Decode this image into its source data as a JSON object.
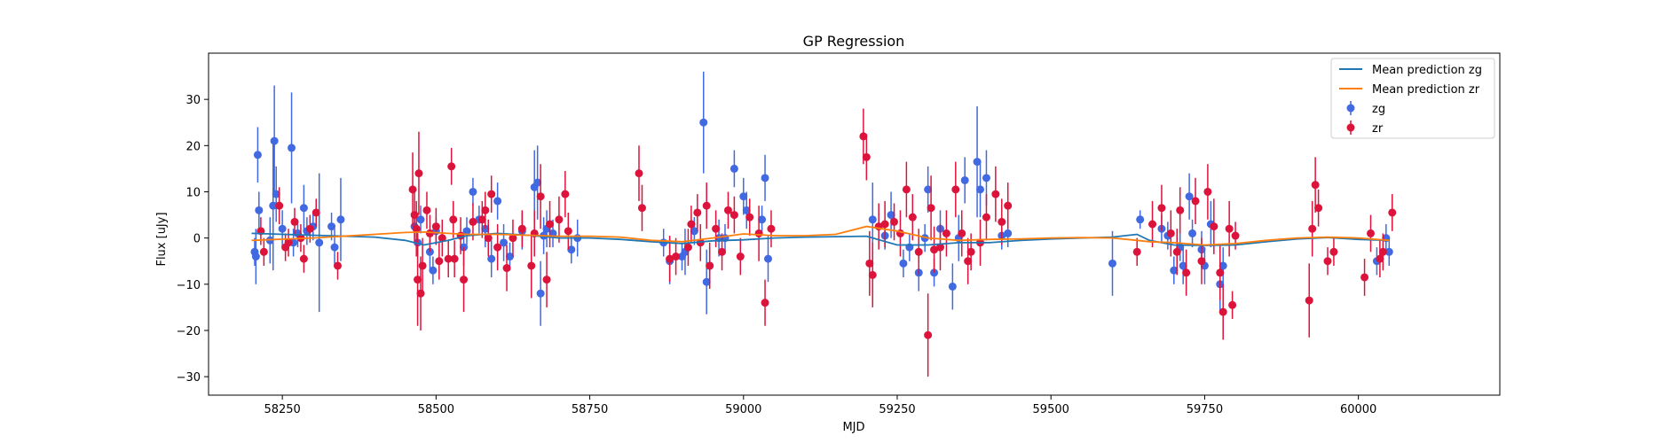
{
  "chart_data": {
    "type": "scatter",
    "title": "GP Regression",
    "xlabel": "MJD",
    "ylabel": "Flux [uJy]",
    "xlim": [
      58130,
      60230
    ],
    "ylim": [
      -34,
      40
    ],
    "xticks": [
      58250,
      58500,
      58750,
      59000,
      59250,
      59500,
      59750,
      60000
    ],
    "yticks": [
      -30,
      -20,
      -10,
      0,
      10,
      20,
      30
    ],
    "grid": false,
    "legend_placement": "top-right",
    "series": [
      {
        "name": "Mean prediction zg",
        "kind": "line",
        "color": "#1f77b4",
        "x": [
          58200,
          58300,
          58400,
          58450,
          58480,
          58520,
          58550,
          58600,
          58650,
          58700,
          58750,
          58800,
          58850,
          58900,
          58950,
          59000,
          59050,
          59100,
          59150,
          59200,
          59250,
          59300,
          59350,
          59400,
          59450,
          59500,
          59550,
          59600,
          59640,
          59660,
          59700,
          59750,
          59800,
          59850,
          59900,
          59950,
          60000,
          60050
        ],
        "y": [
          1.0,
          0.6,
          0.2,
          -0.5,
          -1.5,
          -0.5,
          0.5,
          1.0,
          0.6,
          0.0,
          0.0,
          -0.3,
          -0.8,
          -1.2,
          -0.6,
          -0.4,
          0.0,
          0.2,
          0.3,
          0.4,
          -1.5,
          -1.5,
          -1.0,
          -1.0,
          -0.5,
          -0.2,
          0.0,
          0.2,
          0.8,
          -0.5,
          -1.5,
          -1.6,
          -1.5,
          -0.8,
          -0.2,
          0.1,
          -0.3,
          -0.5
        ]
      },
      {
        "name": "Mean prediction zr",
        "kind": "line",
        "color": "#ff7f0e",
        "x": [
          58200,
          58300,
          58400,
          58450,
          58480,
          58520,
          58550,
          58600,
          58650,
          58700,
          58750,
          58800,
          58850,
          58900,
          58950,
          59000,
          59050,
          59100,
          59150,
          59200,
          59250,
          59300,
          59350,
          59400,
          59450,
          59500,
          59550,
          59600,
          59640,
          59660,
          59700,
          59750,
          59800,
          59850,
          59900,
          59950,
          60000,
          60050
        ],
        "y": [
          -0.5,
          0.0,
          0.8,
          1.2,
          1.3,
          1.0,
          0.8,
          0.8,
          0.6,
          0.4,
          0.4,
          0.2,
          -0.5,
          -0.8,
          0.0,
          0.9,
          0.5,
          0.5,
          0.8,
          2.5,
          1.5,
          0.0,
          -0.5,
          -0.3,
          -0.2,
          0.0,
          0.1,
          0.0,
          -0.5,
          -0.8,
          -1.0,
          -1.5,
          -1.2,
          -0.5,
          0.0,
          0.2,
          0.0,
          -0.5
        ]
      },
      {
        "name": "zg",
        "kind": "errorbar",
        "color": "#4169e1",
        "x": [
          58205,
          58207,
          58210,
          58212,
          58230,
          58235,
          58237,
          58240,
          58250,
          58265,
          58268,
          58275,
          58285,
          58290,
          58300,
          58310,
          58330,
          58335,
          58345,
          58465,
          58470,
          58475,
          58490,
          58495,
          58500,
          58545,
          58550,
          58560,
          58570,
          58580,
          58590,
          58600,
          58610,
          58620,
          58640,
          58660,
          58665,
          58670,
          58675,
          58680,
          58690,
          58720,
          58730,
          58870,
          58880,
          58900,
          58905,
          58920,
          58935,
          58940,
          58945,
          58960,
          58970,
          58985,
          59000,
          59005,
          59030,
          59035,
          59040,
          59210,
          59230,
          59240,
          59260,
          59270,
          59285,
          59295,
          59300,
          59310,
          59320,
          59340,
          59350,
          59360,
          59380,
          59385,
          59395,
          59420,
          59430,
          59600,
          59645,
          59680,
          59690,
          59700,
          59710,
          59715,
          59725,
          59730,
          59745,
          59750,
          59760,
          59775,
          59780,
          60030,
          60045,
          60050
        ],
        "y": [
          -3,
          -4,
          18,
          6,
          -0.5,
          7,
          21,
          9.5,
          2,
          19.5,
          -1,
          1,
          6.5,
          1.5,
          2.5,
          -1,
          2.5,
          -2,
          4,
          2.5,
          -1,
          4,
          -3,
          -7,
          1.5,
          -2,
          1.5,
          10,
          4,
          2,
          -4.5,
          8,
          -1,
          -4,
          1.5,
          11,
          12,
          -12,
          0.5,
          2,
          1,
          -2.5,
          0,
          -1,
          -5,
          -4,
          -3,
          1.5,
          25,
          -9.5,
          -6,
          0,
          0,
          15,
          9,
          6,
          4,
          13,
          -4.5,
          4,
          0.5,
          5,
          -5.5,
          -2,
          -7.5,
          0,
          10.5,
          -7.5,
          2,
          -10.5,
          0,
          12.5,
          16.5,
          10.5,
          13,
          0.5,
          1,
          -5.5,
          4,
          2,
          0.5,
          -7,
          -2,
          -6,
          9,
          1,
          -2.5,
          -6,
          3,
          -10,
          -6,
          -5,
          0,
          -3
        ],
        "err": [
          3,
          6,
          6,
          4,
          5,
          14,
          12,
          6,
          4,
          12,
          3,
          3,
          5,
          3,
          3,
          15,
          3,
          4,
          9,
          3,
          3,
          3,
          4,
          3,
          3,
          4,
          3,
          3,
          3,
          4,
          4,
          4,
          4,
          3,
          4,
          8,
          8,
          7,
          4,
          4,
          3,
          3,
          4,
          3,
          5,
          3,
          5,
          3,
          11,
          7,
          4,
          4,
          3,
          4,
          4,
          4,
          3,
          5,
          5,
          8,
          3,
          5,
          3,
          3,
          4,
          3,
          5,
          3,
          4,
          5,
          5,
          5,
          12,
          6,
          6,
          3,
          3,
          7,
          2,
          3,
          3,
          3,
          3,
          4,
          5,
          3,
          4,
          4,
          5,
          6,
          4,
          3,
          3,
          3
        ]
      },
      {
        "name": "zr",
        "kind": "errorbar",
        "color": "#dc143c",
        "x": [
          58215,
          58220,
          58245,
          58255,
          58260,
          58270,
          58280,
          58285,
          58295,
          58305,
          58340,
          58462,
          58465,
          58468,
          58470,
          58472,
          58475,
          58478,
          58485,
          58490,
          58500,
          58505,
          58510,
          58520,
          58525,
          58528,
          58530,
          58540,
          58545,
          58560,
          58575,
          58580,
          58585,
          58590,
          58600,
          58615,
          58625,
          58640,
          58655,
          58660,
          58670,
          58680,
          58685,
          58700,
          58710,
          58715,
          58830,
          58835,
          58880,
          58890,
          58910,
          58915,
          58925,
          58930,
          58940,
          58945,
          58955,
          58965,
          58975,
          58985,
          58995,
          59010,
          59025,
          59035,
          59045,
          59195,
          59200,
          59205,
          59210,
          59220,
          59230,
          59245,
          59255,
          59265,
          59275,
          59285,
          59300,
          59305,
          59310,
          59320,
          59330,
          59345,
          59355,
          59365,
          59370,
          59385,
          59395,
          59410,
          59420,
          59430,
          59640,
          59665,
          59680,
          59695,
          59705,
          59710,
          59720,
          59735,
          59745,
          59755,
          59765,
          59775,
          59780,
          59790,
          59795,
          59800,
          59920,
          59925,
          59930,
          59935,
          59950,
          59960,
          60010,
          60020,
          60035,
          60040,
          60055
        ],
        "y": [
          1.5,
          -3,
          7,
          -2,
          -1,
          3.5,
          0,
          -4.5,
          2,
          5.5,
          -6,
          10.5,
          5,
          2,
          -9,
          14,
          -12,
          -6,
          6,
          1,
          2.5,
          -5,
          0,
          -4.5,
          15.5,
          4,
          -4.5,
          0.5,
          -9,
          3.5,
          4,
          6,
          0,
          9.5,
          -2,
          -6.5,
          0,
          2,
          -6,
          1,
          9,
          -9,
          3,
          4,
          9.5,
          1.5,
          14,
          6.5,
          -4.5,
          -4,
          -2,
          3,
          5.5,
          -1,
          7,
          -6,
          2,
          -3,
          6,
          5,
          -4,
          4.5,
          1,
          -14,
          2,
          22,
          17.5,
          -5.5,
          -8,
          2.5,
          3,
          3.5,
          1,
          10.5,
          4.5,
          -3,
          -21,
          6.5,
          -2.5,
          -2,
          1,
          10.5,
          1,
          -5,
          -3,
          -1,
          4.5,
          9.5,
          3.5,
          7,
          -3,
          3,
          6.5,
          1,
          -3,
          6,
          -7.5,
          8,
          -5,
          10,
          2.5,
          -7.5,
          -16,
          2,
          -14.5,
          0.5,
          -13.5,
          2,
          11.5,
          6.5,
          -5,
          -3,
          -8.5,
          1,
          -4.5,
          -3,
          5.5
        ],
        "err": [
          3,
          3,
          4,
          3,
          3,
          3,
          3,
          3,
          3,
          3,
          3,
          8,
          6,
          6,
          10,
          9,
          8,
          6,
          4,
          4,
          4,
          4,
          4,
          4,
          4,
          4,
          4,
          4,
          7,
          4,
          4,
          4,
          4,
          4,
          5,
          5,
          4,
          4,
          7,
          5,
          7,
          6,
          5,
          5,
          5,
          4,
          6,
          5,
          5,
          4,
          4,
          4,
          4,
          4,
          5,
          5,
          4,
          4,
          4,
          4,
          4,
          4,
          6,
          5,
          4,
          6,
          5,
          7,
          7,
          5,
          5,
          4,
          5,
          6,
          5,
          5,
          9,
          7,
          5,
          5,
          5,
          6,
          5,
          5,
          4,
          5,
          5,
          6,
          5,
          5,
          3,
          5,
          5,
          5,
          5,
          5,
          5,
          5,
          5,
          6,
          6,
          6,
          6,
          6,
          3,
          3,
          8,
          6,
          6,
          4,
          3,
          3,
          4,
          4,
          4,
          4,
          4
        ]
      }
    ]
  }
}
